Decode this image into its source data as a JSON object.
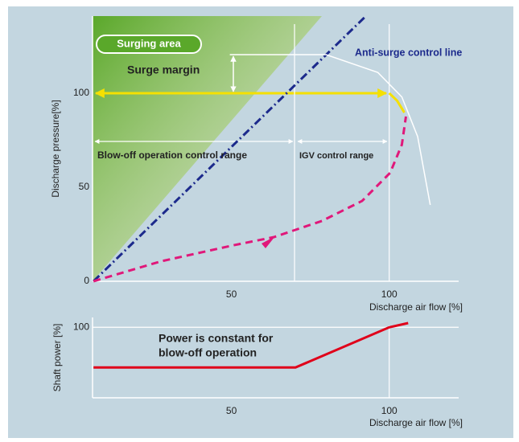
{
  "chart_data": [
    {
      "type": "line",
      "x_label": "Discharge air flow [%]",
      "y_label": "Discharge pressure[%]",
      "xlim": [
        6,
        122
      ],
      "ylim": [
        0,
        141
      ],
      "xticks": [
        50,
        100
      ],
      "yticks": [
        0,
        50,
        100
      ],
      "vlines": [
        70,
        100
      ],
      "series": [
        {
          "name": "Anti-surge control line",
          "color": "#1c2a8c",
          "style": "dashdot",
          "x": [
            6.3,
            92.6
          ],
          "values": [
            0,
            141
          ]
        },
        {
          "color": "#ffffff",
          "style": "solid",
          "x": [
            49.5,
            80,
            96.4,
            104,
            109,
            113
          ],
          "values": [
            120.5,
            120.5,
            111,
            98,
            77,
            40.6
          ]
        },
        {
          "color": "#e0187a",
          "style": "dashed",
          "x": [
            6.3,
            27.9,
            50.8,
            63.5,
            78.7,
            91.4,
            100.3,
            104,
            105.3
          ],
          "values": [
            0,
            10.7,
            19.2,
            23.5,
            32.1,
            42.7,
            57.7,
            72.6,
            87.6
          ]
        },
        {
          "color": "#f5e000",
          "style": "solid",
          "x": [
            100,
            102.5,
            104.8
          ],
          "values": [
            100,
            96,
            89.7
          ]
        }
      ],
      "annotations": [
        "Surging area",
        "Surge margin",
        "Blow-off operation control range",
        "IGV control range"
      ]
    },
    {
      "type": "line",
      "x_label": "Discharge air flow [%]",
      "y_label": "Shaft power [%]",
      "xlim": [
        6,
        122
      ],
      "ylim": [
        0,
        114
      ],
      "xticks": [
        50,
        100
      ],
      "yticks": [
        100
      ],
      "grid": true,
      "vlines": [
        100
      ],
      "series": [
        {
          "color": "#e0001a",
          "style": "solid",
          "x": [
            6.3,
            70.3,
            100,
            106
          ],
          "values": [
            43,
            43,
            100,
            106
          ]
        }
      ],
      "annotations": [
        "Power is constant for",
        "blow-off operation"
      ]
    }
  ]
}
